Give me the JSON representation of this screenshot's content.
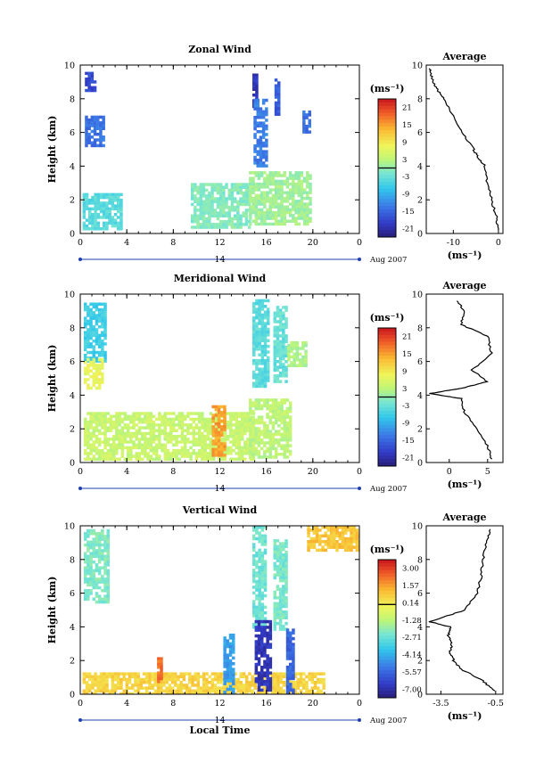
{
  "figure": {
    "xlabel": "Local Time",
    "date_label": "Aug 2007",
    "day_label": "14",
    "unit": "(ms⁻¹)"
  },
  "chart_data": [
    {
      "type": "heatmap",
      "title": "Zonal Wind",
      "xlabel": "Local Time",
      "ylabel": "Height (km)",
      "xticks": [
        "0",
        "4",
        "8",
        "12",
        "16",
        "20",
        "0"
      ],
      "xlim": [
        0,
        24
      ],
      "yticks": [
        "0",
        "2",
        "4",
        "6",
        "8",
        "10"
      ],
      "ylim": [
        0,
        10
      ],
      "colorbar": {
        "unit": "(ms⁻¹)",
        "ticks": [
          "21",
          "15",
          "9",
          "3",
          "-3",
          "-9",
          "-15",
          "-21"
        ],
        "range": [
          -24,
          24
        ]
      },
      "regions": [
        {
          "t": [
            0.4,
            1.2
          ],
          "h": [
            8.5,
            9.6
          ],
          "value": -18
        },
        {
          "t": [
            0.4,
            2.0
          ],
          "h": [
            5.3,
            7.0
          ],
          "value": -14
        },
        {
          "t": [
            14.8,
            15.2
          ],
          "h": [
            7.5,
            9.5
          ],
          "value": -20
        },
        {
          "t": [
            14.9,
            15.9
          ],
          "h": [
            4.0,
            8.0
          ],
          "value": -13
        },
        {
          "t": [
            16.7,
            17.1
          ],
          "h": [
            7.0,
            9.2
          ],
          "value": -16
        },
        {
          "t": [
            19.1,
            19.6
          ],
          "h": [
            6.0,
            7.3
          ],
          "value": -14
        },
        {
          "t": [
            0.2,
            3.5
          ],
          "h": [
            0.2,
            2.4
          ],
          "value": -4
        },
        {
          "t": [
            9.5,
            14.5
          ],
          "h": [
            0.3,
            3.0
          ],
          "value": -1
        },
        {
          "t": [
            14.5,
            19.8
          ],
          "h": [
            0.5,
            3.7
          ],
          "value": 1
        }
      ],
      "average_profile": {
        "title": "Average",
        "xlabel": "(ms⁻¹)",
        "xticks": [
          "-10",
          "0"
        ],
        "xlim": [
          -16,
          1
        ],
        "height": [
          0.2,
          1,
          2,
          3,
          4,
          4.5,
          5,
          6,
          7,
          8,
          8.5,
          9,
          9.5,
          9.8
        ],
        "value": [
          0,
          -0.5,
          -1.5,
          -2.5,
          -3,
          -4.5,
          -5.5,
          -8,
          -10,
          -12,
          -13.5,
          -14.5,
          -15,
          -15.3
        ]
      }
    },
    {
      "type": "heatmap",
      "title": "Meridional Wind",
      "xlabel": "Local Time",
      "ylabel": "Height (km)",
      "xticks": [
        "0",
        "4",
        "8",
        "12",
        "16",
        "20",
        "0"
      ],
      "xlim": [
        0,
        24
      ],
      "yticks": [
        "0",
        "2",
        "4",
        "6",
        "8",
        "10"
      ],
      "ylim": [
        0,
        10
      ],
      "colorbar": {
        "unit": "(ms⁻¹)",
        "ticks": [
          "21",
          "15",
          "9",
          "3",
          "-3",
          "-9",
          "-15",
          "-21"
        ],
        "range": [
          -24,
          24
        ]
      },
      "regions": [
        {
          "t": [
            0.3,
            2.2
          ],
          "h": [
            6.0,
            9.5
          ],
          "value": -6
        },
        {
          "t": [
            0.3,
            2.0
          ],
          "h": [
            4.5,
            6.2
          ],
          "value": 7
        },
        {
          "t": [
            14.8,
            16.2
          ],
          "h": [
            4.5,
            9.7
          ],
          "value": -4
        },
        {
          "t": [
            16.6,
            17.6
          ],
          "h": [
            4.8,
            9.3
          ],
          "value": -3
        },
        {
          "t": [
            17.8,
            19.5
          ],
          "h": [
            5.8,
            7.2
          ],
          "value": 2
        },
        {
          "t": [
            0.3,
            15.0
          ],
          "h": [
            0.2,
            3.0
          ],
          "value": 4
        },
        {
          "t": [
            11.3,
            12.4
          ],
          "h": [
            0.4,
            3.4
          ],
          "value": 15
        },
        {
          "t": [
            14.5,
            18.0
          ],
          "h": [
            0.3,
            3.8
          ],
          "value": 3
        }
      ],
      "average_profile": {
        "title": "Average",
        "xlabel": "(ms⁻¹)",
        "xticks": [
          "0",
          "5"
        ],
        "xlim": [
          -3,
          7
        ],
        "height": [
          0.2,
          1,
          2,
          3,
          3.8,
          4.1,
          4.4,
          4.8,
          5.5,
          6.5,
          7.5,
          8.2,
          9,
          9.6
        ],
        "value": [
          5.5,
          5,
          3.5,
          2,
          1.5,
          -2.5,
          1.5,
          5,
          3,
          5.5,
          5,
          1.5,
          2,
          1
        ]
      }
    },
    {
      "type": "heatmap",
      "title": "Vertical Wind",
      "xlabel": "Local Time",
      "ylabel": "Height (km)",
      "xticks": [
        "0",
        "4",
        "8",
        "12",
        "16",
        "20",
        "0"
      ],
      "xlim": [
        0,
        24
      ],
      "yticks": [
        "0",
        "2",
        "4",
        "6",
        "8",
        "10"
      ],
      "ylim": [
        0,
        10
      ],
      "colorbar": {
        "unit": "(ms⁻¹)",
        "ticks": [
          "3.00",
          "1.57",
          "0.14",
          "-1.28",
          "-2.71",
          "-4.14",
          "-5.57",
          "-7.00"
        ],
        "range": [
          -7.7,
          3.7
        ]
      },
      "regions": [
        {
          "t": [
            0.3,
            2.3
          ],
          "h": [
            5.5,
            9.8
          ],
          "value": -2.3
        },
        {
          "t": [
            14.8,
            16.0
          ],
          "h": [
            4.0,
            10.0
          ],
          "value": -2.6
        },
        {
          "t": [
            16.6,
            17.6
          ],
          "h": [
            3.8,
            9.2
          ],
          "value": -2.4
        },
        {
          "t": [
            0.2,
            21.0
          ],
          "h": [
            0.1,
            1.3
          ],
          "value": 0.6
        },
        {
          "t": [
            12.3,
            13.2
          ],
          "h": [
            0.1,
            3.6
          ],
          "value": -4.5
        },
        {
          "t": [
            15.0,
            16.3
          ],
          "h": [
            0.2,
            4.4
          ],
          "value": -6.8
        },
        {
          "t": [
            17.7,
            18.4
          ],
          "h": [
            0.1,
            3.9
          ],
          "value": -5.6
        },
        {
          "t": [
            6.6,
            7.0
          ],
          "h": [
            0.8,
            2.2
          ],
          "value": 2.2
        },
        {
          "t": [
            19.5,
            24.0
          ],
          "h": [
            8.5,
            10.0
          ],
          "value": 0.9
        }
      ],
      "average_profile": {
        "title": "Average",
        "xlabel": "(ms⁻¹)",
        "xticks": [
          "-3.5",
          "-0.5"
        ],
        "xlim": [
          -4.3,
          -0.1
        ],
        "height": [
          0.2,
          0.8,
          1.5,
          2,
          2.5,
          3,
          3.5,
          4,
          4.3,
          5,
          6,
          7,
          8,
          9,
          9.8
        ],
        "value": [
          -0.6,
          -1.2,
          -2.4,
          -2.8,
          -3.0,
          -2.9,
          -3.1,
          -3.0,
          -4.1,
          -2.2,
          -1.5,
          -1.3,
          -1.2,
          -1.0,
          -0.8
        ]
      }
    }
  ]
}
